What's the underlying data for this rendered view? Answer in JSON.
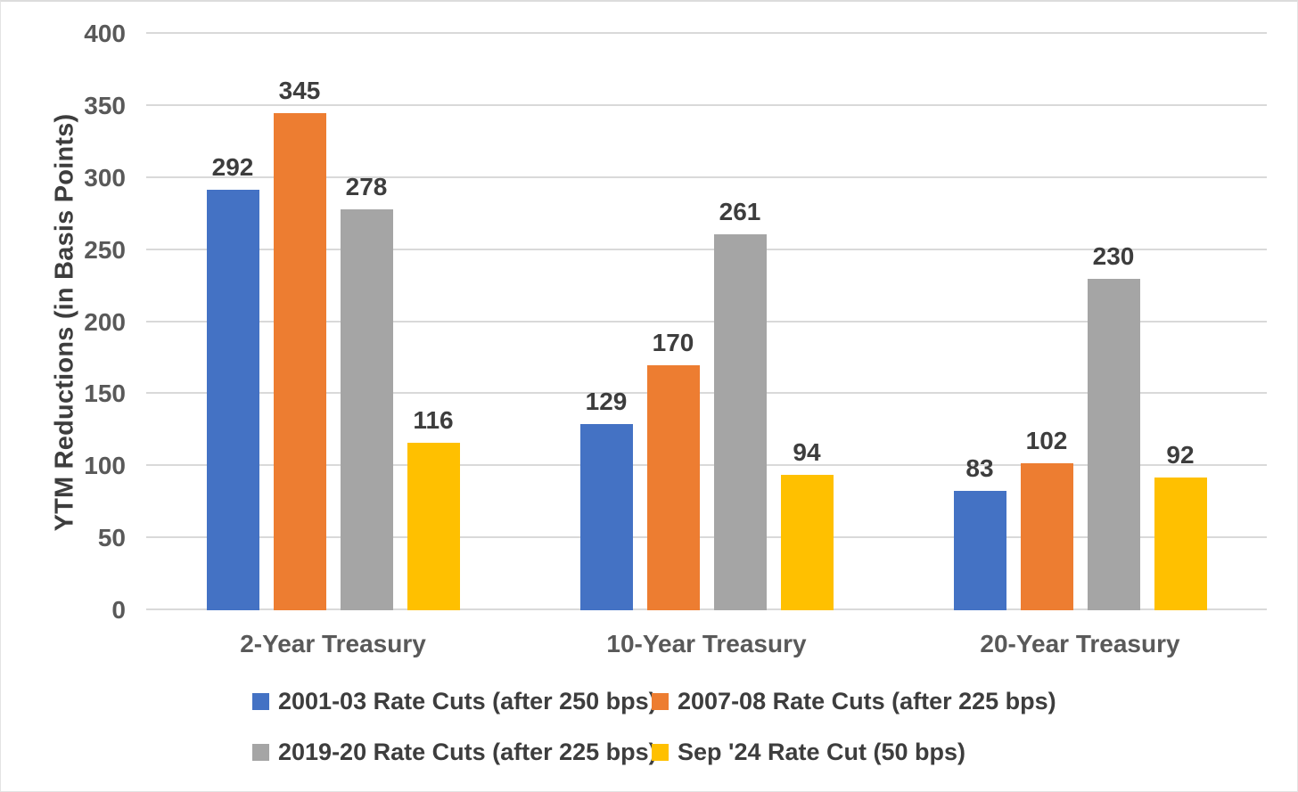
{
  "chart_data": {
    "type": "bar",
    "title": "",
    "categories": [
      "2-Year Treasury",
      "10-Year Treasury",
      "20-Year Treasury"
    ],
    "series": [
      {
        "name": "2001-03 Rate Cuts (after 250 bps)",
        "color": "#4472C4",
        "values": [
          292,
          129,
          83
        ]
      },
      {
        "name": "2007-08 Rate Cuts (after 225 bps)",
        "color": "#ED7D31",
        "values": [
          345,
          170,
          102
        ]
      },
      {
        "name": "2019-20 Rate Cuts (after 225 bps)",
        "color": "#A5A5A5",
        "values": [
          278,
          261,
          230
        ]
      },
      {
        "name": "Sep '24 Rate Cut (50 bps)",
        "color": "#FFC000",
        "values": [
          116,
          94,
          92
        ]
      }
    ],
    "xlabel": "",
    "ylabel": "YTM Reductions (in Basis Points)",
    "ylim": [
      0,
      400
    ],
    "yticks": [
      0,
      50,
      100,
      150,
      200,
      250,
      300,
      350,
      400
    ],
    "grid": true,
    "data_labels": true,
    "legend_position": "bottom",
    "legend_columns": 2
  },
  "styles": {
    "grid_color": "#d9d9d9",
    "axis_text_color": "#595959",
    "data_label_color": "#3d3d3d",
    "background": "#ffffff",
    "border_color": "#e3e3e3"
  }
}
